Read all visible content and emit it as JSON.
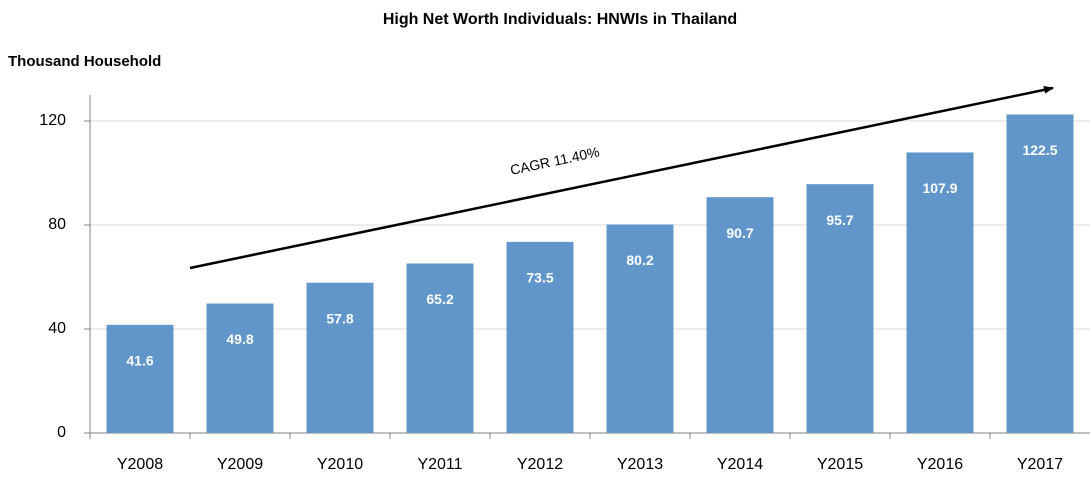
{
  "chart_data": {
    "type": "bar",
    "title": "High Net Worth Individuals: HNWIs in Thailand",
    "y_label": "Thousand Household",
    "annotation": "CAGR 11.40%",
    "categories": [
      "Y2008",
      "Y2009",
      "Y2010",
      "Y2011",
      "Y2012",
      "Y2013",
      "Y2014",
      "Y2015",
      "Y2016",
      "Y2017"
    ],
    "values": [
      41.6,
      49.8,
      57.8,
      65.2,
      73.5,
      80.2,
      90.7,
      95.7,
      107.9,
      122.5
    ],
    "color": "#6096c9",
    "ylim": [
      0,
      130
    ],
    "yticks": [
      0,
      40,
      80,
      120
    ],
    "grid": true
  }
}
